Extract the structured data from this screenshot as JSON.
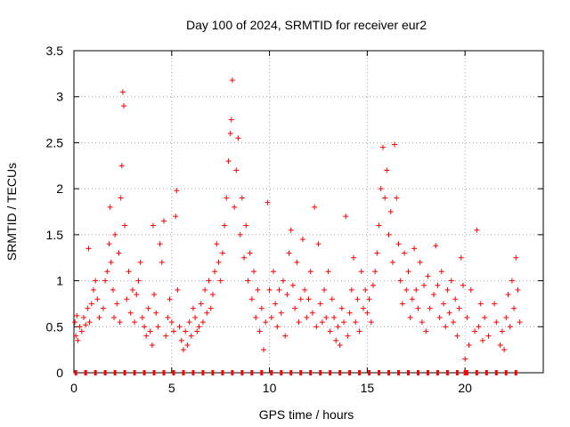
{
  "chart_data": {
    "type": "scatter",
    "title": "Day 100 of 2024, SRMTID for receiver eur2",
    "xlabel": "GPS time / hours",
    "ylabel": "SRMTID / TECUs",
    "xlim": [
      0,
      24
    ],
    "ylim": [
      0,
      3.5
    ],
    "x_ticks": [
      0,
      5,
      10,
      15,
      20
    ],
    "x_tick_labels": [
      "0",
      "5",
      "10",
      "15",
      "20"
    ],
    "y_ticks": [
      0,
      0.5,
      1,
      1.5,
      2,
      2.5,
      3,
      3.5
    ],
    "y_tick_labels": [
      "0",
      "0.5",
      "1",
      "1.5",
      "2",
      "2.5",
      "3",
      "3.5"
    ],
    "grid": true,
    "marker": "+",
    "color": "#ff0000",
    "series": [
      {
        "name": "SRMTID",
        "points": [
          [
            0.05,
            0.55
          ],
          [
            0.1,
            0.4
          ],
          [
            0.15,
            0.62
          ],
          [
            0.2,
            0.35
          ],
          [
            0.3,
            0.5
          ],
          [
            0.4,
            0.45
          ],
          [
            0.5,
            0.6
          ],
          [
            0.6,
            0.52
          ],
          [
            0.7,
            0.7
          ],
          [
            0.75,
            1.35
          ],
          [
            0.8,
            0.55
          ],
          [
            0.9,
            0.75
          ],
          [
            1.0,
            0.9
          ],
          [
            1.1,
            1.0
          ],
          [
            1.2,
            0.8
          ],
          [
            1.3,
            0.6
          ],
          [
            1.5,
            0.7
          ],
          [
            1.6,
            1.0
          ],
          [
            1.7,
            1.1
          ],
          [
            1.8,
            1.4
          ],
          [
            1.85,
            1.8
          ],
          [
            1.9,
            1.2
          ],
          [
            2.0,
            0.9
          ],
          [
            2.05,
            0.6
          ],
          [
            2.1,
            1.5
          ],
          [
            2.2,
            0.75
          ],
          [
            2.3,
            1.3
          ],
          [
            2.35,
            0.55
          ],
          [
            2.4,
            1.9
          ],
          [
            2.45,
            2.25
          ],
          [
            2.5,
            3.05
          ],
          [
            2.55,
            2.9
          ],
          [
            2.6,
            1.6
          ],
          [
            2.7,
            0.8
          ],
          [
            2.8,
            1.1
          ],
          [
            2.9,
            0.65
          ],
          [
            3.0,
            0.9
          ],
          [
            3.1,
            0.55
          ],
          [
            3.2,
            0.85
          ],
          [
            3.3,
            1.0
          ],
          [
            3.4,
            1.2
          ],
          [
            3.5,
            0.6
          ],
          [
            3.6,
            0.5
          ],
          [
            3.7,
            0.4
          ],
          [
            3.8,
            0.7
          ],
          [
            3.9,
            0.45
          ],
          [
            4.0,
            0.3
          ],
          [
            4.05,
            1.6
          ],
          [
            4.1,
            0.85
          ],
          [
            4.2,
            0.65
          ],
          [
            4.3,
            0.5
          ],
          [
            4.4,
            1.4
          ],
          [
            4.5,
            1.2
          ],
          [
            4.6,
            1.65
          ],
          [
            4.7,
            0.4
          ],
          [
            4.8,
            0.6
          ],
          [
            4.9,
            0.8
          ],
          [
            5.0,
            0.55
          ],
          [
            5.1,
            0.45
          ],
          [
            5.2,
            1.7
          ],
          [
            5.25,
            1.98
          ],
          [
            5.3,
            0.9
          ],
          [
            5.4,
            0.5
          ],
          [
            5.5,
            0.35
          ],
          [
            5.6,
            0.25
          ],
          [
            5.7,
            0.45
          ],
          [
            5.8,
            0.3
          ],
          [
            5.9,
            0.55
          ],
          [
            6.0,
            0.4
          ],
          [
            6.1,
            0.7
          ],
          [
            6.2,
            0.6
          ],
          [
            6.3,
            0.45
          ],
          [
            6.4,
            0.5
          ],
          [
            6.5,
            0.75
          ],
          [
            6.6,
            0.55
          ],
          [
            6.7,
            0.9
          ],
          [
            6.8,
            0.65
          ],
          [
            6.9,
            1.0
          ],
          [
            7.0,
            0.7
          ],
          [
            7.1,
            0.85
          ],
          [
            7.2,
            1.1
          ],
          [
            7.3,
            1.4
          ],
          [
            7.4,
            1.2
          ],
          [
            7.5,
            1.0
          ],
          [
            7.6,
            1.3
          ],
          [
            7.7,
            1.6
          ],
          [
            7.8,
            1.9
          ],
          [
            7.9,
            2.3
          ],
          [
            8.0,
            2.6
          ],
          [
            8.05,
            2.75
          ],
          [
            8.1,
            3.18
          ],
          [
            8.2,
            1.8
          ],
          [
            8.3,
            2.2
          ],
          [
            8.4,
            2.55
          ],
          [
            8.5,
            1.5
          ],
          [
            8.6,
            1.9
          ],
          [
            8.7,
            1.25
          ],
          [
            8.8,
            1.6
          ],
          [
            8.9,
            1.0
          ],
          [
            9.0,
            1.3
          ],
          [
            9.1,
            0.8
          ],
          [
            9.2,
            1.1
          ],
          [
            9.3,
            0.6
          ],
          [
            9.4,
            0.9
          ],
          [
            9.5,
            0.45
          ],
          [
            9.6,
            0.7
          ],
          [
            9.7,
            0.25
          ],
          [
            9.8,
            0.55
          ],
          [
            9.9,
            1.85
          ],
          [
            10.0,
            0.9
          ],
          [
            10.1,
            0.6
          ],
          [
            10.2,
            1.1
          ],
          [
            10.3,
            0.75
          ],
          [
            10.4,
            0.5
          ],
          [
            10.5,
            0.9
          ],
          [
            10.6,
            0.65
          ],
          [
            10.7,
            1.0
          ],
          [
            10.8,
            0.4
          ],
          [
            10.9,
            0.85
          ],
          [
            11.0,
            1.3
          ],
          [
            11.1,
            1.55
          ],
          [
            11.2,
            0.95
          ],
          [
            11.3,
            0.7
          ],
          [
            11.4,
            1.2
          ],
          [
            11.5,
            0.55
          ],
          [
            11.6,
            0.8
          ],
          [
            11.7,
            1.45
          ],
          [
            11.8,
            0.9
          ],
          [
            11.9,
            0.6
          ],
          [
            12.0,
            0.8
          ],
          [
            12.1,
            1.1
          ],
          [
            12.2,
            0.65
          ],
          [
            12.3,
            1.8
          ],
          [
            12.4,
            0.5
          ],
          [
            12.5,
            1.4
          ],
          [
            12.6,
            0.75
          ],
          [
            12.7,
            0.55
          ],
          [
            12.8,
            0.9
          ],
          [
            12.9,
            0.6
          ],
          [
            13.0,
            1.1
          ],
          [
            13.1,
            0.45
          ],
          [
            13.2,
            0.8
          ],
          [
            13.3,
            0.6
          ],
          [
            13.4,
            0.35
          ],
          [
            13.5,
            0.5
          ],
          [
            13.6,
            0.3
          ],
          [
            13.7,
            0.7
          ],
          [
            13.8,
            0.55
          ],
          [
            13.9,
            1.7
          ],
          [
            14.0,
            0.4
          ],
          [
            14.1,
            0.65
          ],
          [
            14.2,
            0.9
          ],
          [
            14.3,
            1.25
          ],
          [
            14.4,
            0.55
          ],
          [
            14.5,
            0.8
          ],
          [
            14.6,
            0.45
          ],
          [
            14.7,
            1.1
          ],
          [
            14.8,
            0.7
          ],
          [
            14.9,
            0.9
          ],
          [
            15.0,
            0.65
          ],
          [
            15.1,
            0.8
          ],
          [
            15.2,
            0.55
          ],
          [
            15.3,
            0.95
          ],
          [
            15.4,
            1.1
          ],
          [
            15.5,
            1.3
          ],
          [
            15.6,
            1.6
          ],
          [
            15.7,
            2.0
          ],
          [
            15.8,
            2.45
          ],
          [
            15.9,
            1.9
          ],
          [
            16.0,
            2.2
          ],
          [
            16.1,
            1.5
          ],
          [
            16.2,
            1.75
          ],
          [
            16.3,
            1.2
          ],
          [
            16.4,
            2.48
          ],
          [
            16.5,
            1.9
          ],
          [
            16.6,
            1.4
          ],
          [
            16.7,
            1.0
          ],
          [
            16.8,
            0.75
          ],
          [
            16.9,
            1.3
          ],
          [
            17.0,
            0.9
          ],
          [
            17.1,
            1.1
          ],
          [
            17.2,
            0.6
          ],
          [
            17.3,
            0.8
          ],
          [
            17.4,
            1.35
          ],
          [
            17.5,
            0.9
          ],
          [
            17.6,
            0.7
          ],
          [
            17.7,
            1.2
          ],
          [
            17.8,
            0.55
          ],
          [
            17.9,
            0.95
          ],
          [
            18.0,
            0.45
          ],
          [
            18.1,
            1.05
          ],
          [
            18.2,
            0.7
          ],
          [
            18.4,
            0.85
          ],
          [
            18.5,
            1.38
          ],
          [
            18.6,
            0.95
          ],
          [
            18.7,
            0.6
          ],
          [
            18.8,
            1.1
          ],
          [
            18.9,
            0.75
          ],
          [
            19.0,
            0.5
          ],
          [
            19.1,
            0.9
          ],
          [
            19.2,
            0.65
          ],
          [
            19.3,
            1.0
          ],
          [
            19.4,
            0.55
          ],
          [
            19.5,
            0.8
          ],
          [
            19.6,
            0.4
          ],
          [
            19.7,
            0.7
          ],
          [
            19.8,
            1.25
          ],
          [
            19.9,
            0.95
          ],
          [
            20.0,
            0.15
          ],
          [
            20.1,
            0.6
          ],
          [
            20.2,
            0.3
          ],
          [
            20.3,
            0.9
          ],
          [
            20.5,
            0.45
          ],
          [
            20.6,
            1.55
          ],
          [
            20.7,
            0.5
          ],
          [
            20.8,
            0.75
          ],
          [
            20.9,
            0.35
          ],
          [
            21.0,
            0.6
          ],
          [
            21.2,
            0.4
          ],
          [
            21.5,
            0.75
          ],
          [
            21.6,
            0.55
          ],
          [
            21.8,
            0.3
          ],
          [
            21.9,
            0.45
          ],
          [
            22.0,
            0.25
          ],
          [
            22.1,
            0.6
          ],
          [
            22.2,
            0.85
          ],
          [
            22.3,
            0.5
          ],
          [
            22.4,
            1.0
          ],
          [
            22.5,
            0.7
          ],
          [
            22.6,
            1.25
          ],
          [
            22.7,
            0.9
          ],
          [
            22.8,
            0.55
          ]
        ]
      }
    ]
  }
}
